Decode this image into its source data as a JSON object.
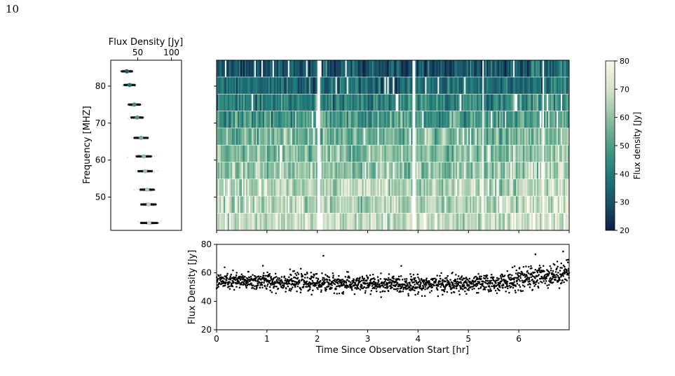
{
  "page_number": "10",
  "chart_data": [
    {
      "type": "scatter",
      "panel": "spectrum",
      "title": "",
      "xlabel": "Flux Density [Jy]",
      "ylabel": "Frequency [MHZ]",
      "x_axis_position": "top",
      "xlim": [
        10,
        115
      ],
      "ylim": [
        41,
        87
      ],
      "xticks": [
        50,
        100
      ],
      "yticks": [
        50,
        60,
        70,
        80
      ],
      "series": [
        {
          "frequencies": [
            84,
            80.3,
            75,
            71.5,
            66,
            61,
            57,
            52,
            48,
            43
          ],
          "flux_density": [
            34,
            38,
            45,
            49,
            55,
            59,
            61,
            64,
            66,
            67
          ]
        }
      ],
      "spread_halfwidth_jy": [
        10,
        10,
        11,
        11,
        13,
        14,
        13,
        13,
        14,
        16
      ],
      "grid": false
    },
    {
      "type": "heatmap",
      "panel": "dynamic-spectrum",
      "title": "",
      "x_range_hr": [
        0,
        7
      ],
      "frequency_bands": [
        86,
        83,
        78,
        73,
        68.5,
        63.5,
        58.5,
        54,
        49,
        44
      ],
      "band_mean_flux": [
        30,
        36,
        42,
        47,
        55,
        58,
        60,
        64,
        65,
        67
      ],
      "colormap": "cubehelix-teal (dark navy to cream)",
      "color_stops": [
        "#0f1e47",
        "#1a4f66",
        "#1f7a7a",
        "#4d9e87",
        "#8ec0a0",
        "#d5e4cc",
        "#fbf6e8"
      ],
      "grid": false
    },
    {
      "type": "colorbar",
      "label": "Flux density [Jy]",
      "range": [
        20,
        80
      ],
      "ticks": [
        20,
        30,
        40,
        50,
        60,
        70,
        80
      ]
    },
    {
      "type": "scatter",
      "panel": "light-curve",
      "title": "",
      "xlabel": "Time Since Observation Start [hr]",
      "ylabel": "Flux Density [Jy]",
      "xlim": [
        0,
        7
      ],
      "ylim": [
        20,
        80
      ],
      "xticks": [
        0,
        1,
        2,
        3,
        4,
        5,
        6
      ],
      "yticks": [
        20,
        40,
        60,
        80
      ],
      "trend": [
        {
          "x": 0,
          "y": 54
        },
        {
          "x": 1,
          "y": 54
        },
        {
          "x": 2,
          "y": 53
        },
        {
          "x": 3,
          "y": 52
        },
        {
          "x": 4,
          "y": 52
        },
        {
          "x": 5,
          "y": 52
        },
        {
          "x": 5.6,
          "y": 53
        },
        {
          "x": 6,
          "y": 55
        },
        {
          "x": 6.5,
          "y": 58
        },
        {
          "x": 7,
          "y": 60
        }
      ],
      "scatter_sd_jy": 3,
      "outliers": [
        {
          "x": 2.12,
          "y": 72
        },
        {
          "x": 6.33,
          "y": 73
        },
        {
          "x": 6.88,
          "y": 75
        },
        {
          "x": 0.92,
          "y": 65
        },
        {
          "x": 6.95,
          "y": 69
        }
      ],
      "grid": false
    }
  ]
}
